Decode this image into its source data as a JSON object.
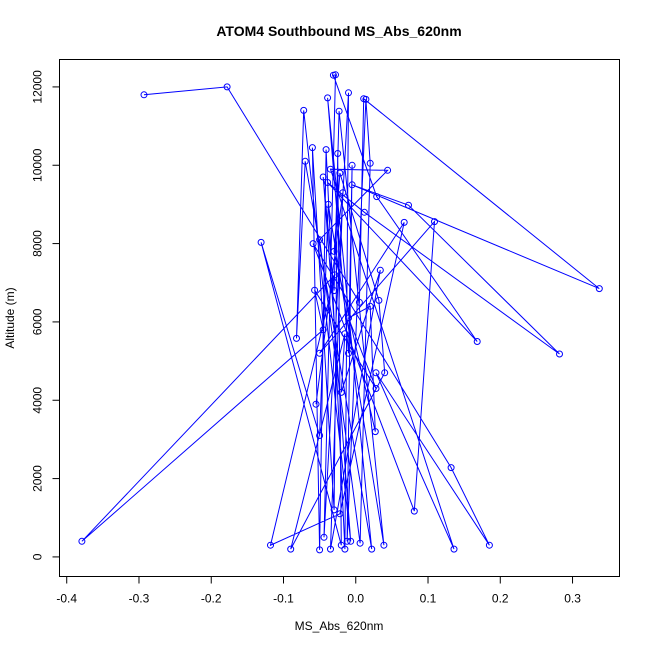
{
  "chart_data": {
    "type": "line",
    "title": "ATOM4 Southbound MS_Abs_620nm",
    "xlabel": "MS_Abs_620nm",
    "ylabel": "Altitude (m)",
    "xlim": [
      -0.41,
      0.365
    ],
    "ylim": [
      -500,
      12700
    ],
    "x_ticks": [
      -0.4,
      -0.3,
      -0.2,
      -0.1,
      0.0,
      0.1,
      0.2,
      0.3
    ],
    "x_tick_labels": [
      "-0.4",
      "-0.3",
      "-0.2",
      "-0.1",
      "0.0",
      "0.1",
      "0.2",
      "0.3"
    ],
    "y_ticks": [
      0,
      2000,
      4000,
      6000,
      8000,
      10000,
      12000
    ],
    "y_tick_labels": [
      "0",
      "2000",
      "4000",
      "6000",
      "8000",
      "10000",
      "12000"
    ],
    "grid": false,
    "series": [
      {
        "color": "#0000ff",
        "marker": "open-circle",
        "points": [
          [
            -0.293,
            11800
          ],
          [
            -0.178,
            12000
          ],
          [
            0.005,
            6500
          ],
          [
            0.011,
            11700
          ],
          [
            0.337,
            6850
          ],
          [
            -0.005,
            9500
          ],
          [
            0.073,
            8980
          ],
          [
            0.282,
            5180
          ],
          [
            0.012,
            8800
          ],
          [
            -0.039,
            9560
          ],
          [
            0.168,
            5500
          ],
          [
            0.029,
            9200
          ],
          [
            -0.031,
            12300
          ],
          [
            -0.028,
            12310
          ],
          [
            -0.044,
            500
          ],
          [
            -0.01,
            11850
          ],
          [
            -0.015,
            200
          ],
          [
            -0.041,
            10400
          ],
          [
            -0.05,
            180
          ],
          [
            -0.06,
            10450
          ],
          [
            -0.03,
            1200
          ],
          [
            -0.025,
            10300
          ],
          [
            -0.02,
            300
          ],
          [
            -0.131,
            8030
          ],
          [
            -0.05,
            3100
          ],
          [
            -0.038,
            9000
          ],
          [
            0.039,
            300
          ],
          [
            -0.023,
            11380
          ],
          [
            -0.03,
            6800
          ],
          [
            -0.045,
            9700
          ],
          [
            -0.007,
            400
          ],
          [
            -0.072,
            11400
          ],
          [
            -0.082,
            5580
          ],
          [
            -0.07,
            10100
          ],
          [
            0.022,
            200
          ],
          [
            -0.039,
            11720
          ],
          [
            -0.01,
            5200
          ],
          [
            -0.005,
            10000
          ],
          [
            -0.012,
            400
          ],
          [
            0.014,
            11680
          ],
          [
            0.02,
            10050
          ],
          [
            0.006,
            350
          ],
          [
            -0.05,
            8100
          ],
          [
            0.044,
            9870
          ],
          [
            -0.035,
            9900
          ],
          [
            0.136,
            200
          ],
          [
            0.028,
            4700
          ],
          [
            0.185,
            300
          ],
          [
            0.132,
            2280
          ],
          [
            -0.059,
            8000
          ],
          [
            0.081,
            1170
          ],
          [
            0.109,
            8560
          ],
          [
            -0.05,
            5200
          ],
          [
            0.067,
            8540
          ],
          [
            -0.022,
            1100
          ],
          [
            -0.118,
            300
          ],
          [
            -0.029,
            7200
          ],
          [
            -0.379,
            400
          ],
          [
            -0.045,
            5800
          ],
          [
            -0.057,
            6810
          ],
          [
            0.028,
            4300
          ],
          [
            -0.01,
            6100
          ],
          [
            0.02,
            6400
          ],
          [
            0.027,
            3200
          ],
          [
            -0.03,
            7800
          ],
          [
            -0.022,
            9800
          ],
          [
            0.032,
            6550
          ],
          [
            0.04,
            4700
          ],
          [
            -0.09,
            200
          ],
          [
            -0.015,
            5700
          ],
          [
            -0.02,
            4200
          ],
          [
            0.034,
            7320
          ],
          [
            -0.035,
            200
          ],
          [
            -0.018,
            9300
          ],
          [
            -0.055,
            3900
          ]
        ]
      }
    ]
  }
}
